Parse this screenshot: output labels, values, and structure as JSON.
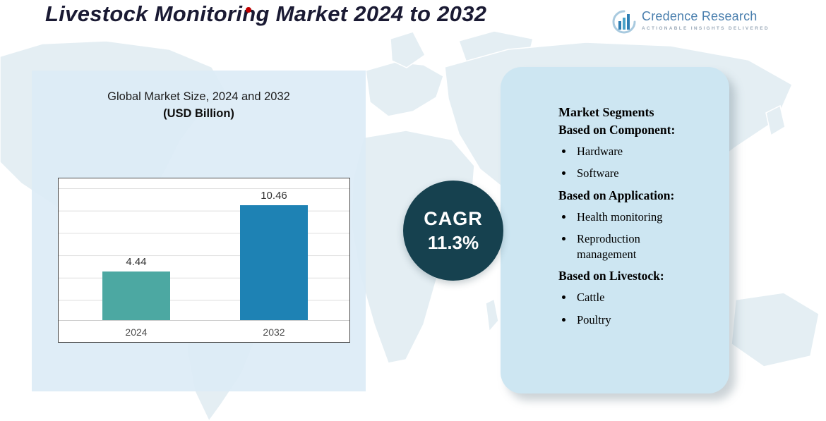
{
  "page": {
    "title": "Livestock Monitoring Market 2024 to 2032"
  },
  "brand": {
    "name": "Credence Research",
    "tagline": "Actionable Insights Delivered"
  },
  "chart_panel": {
    "title": "Global Market Size, 2024 and 2032",
    "subtitle": "(USD Billion)"
  },
  "chart_data": {
    "type": "bar",
    "categories": [
      "2024",
      "2032"
    ],
    "values": [
      4.44,
      10.46
    ],
    "title": "Global Market Size, 2024 and 2032 (USD Billion)",
    "xlabel": "",
    "ylabel": "",
    "ylim": [
      0,
      12
    ],
    "grid": true,
    "legend": false,
    "bar_colors": [
      "#4CA8A2",
      "#1E82B4"
    ]
  },
  "cagr": {
    "label": "CAGR",
    "value": "11.3%"
  },
  "segments": {
    "title": "Market Segments",
    "groups": [
      {
        "heading": "Based on Component:",
        "items": [
          "Hardware",
          "Software"
        ]
      },
      {
        "heading": "Based on Application:",
        "items": [
          "Health monitoring",
          "Reproduction management"
        ]
      },
      {
        "heading": "Based on Livestock:",
        "items": [
          "Cattle",
          "Poultry"
        ]
      }
    ]
  },
  "colors": {
    "cagr_circle": "#16414F",
    "accent_red": "#C00000",
    "bar_2024": "#4CA8A2",
    "bar_2032": "#1E82B4",
    "brand_blue": "#4A7FAE"
  }
}
